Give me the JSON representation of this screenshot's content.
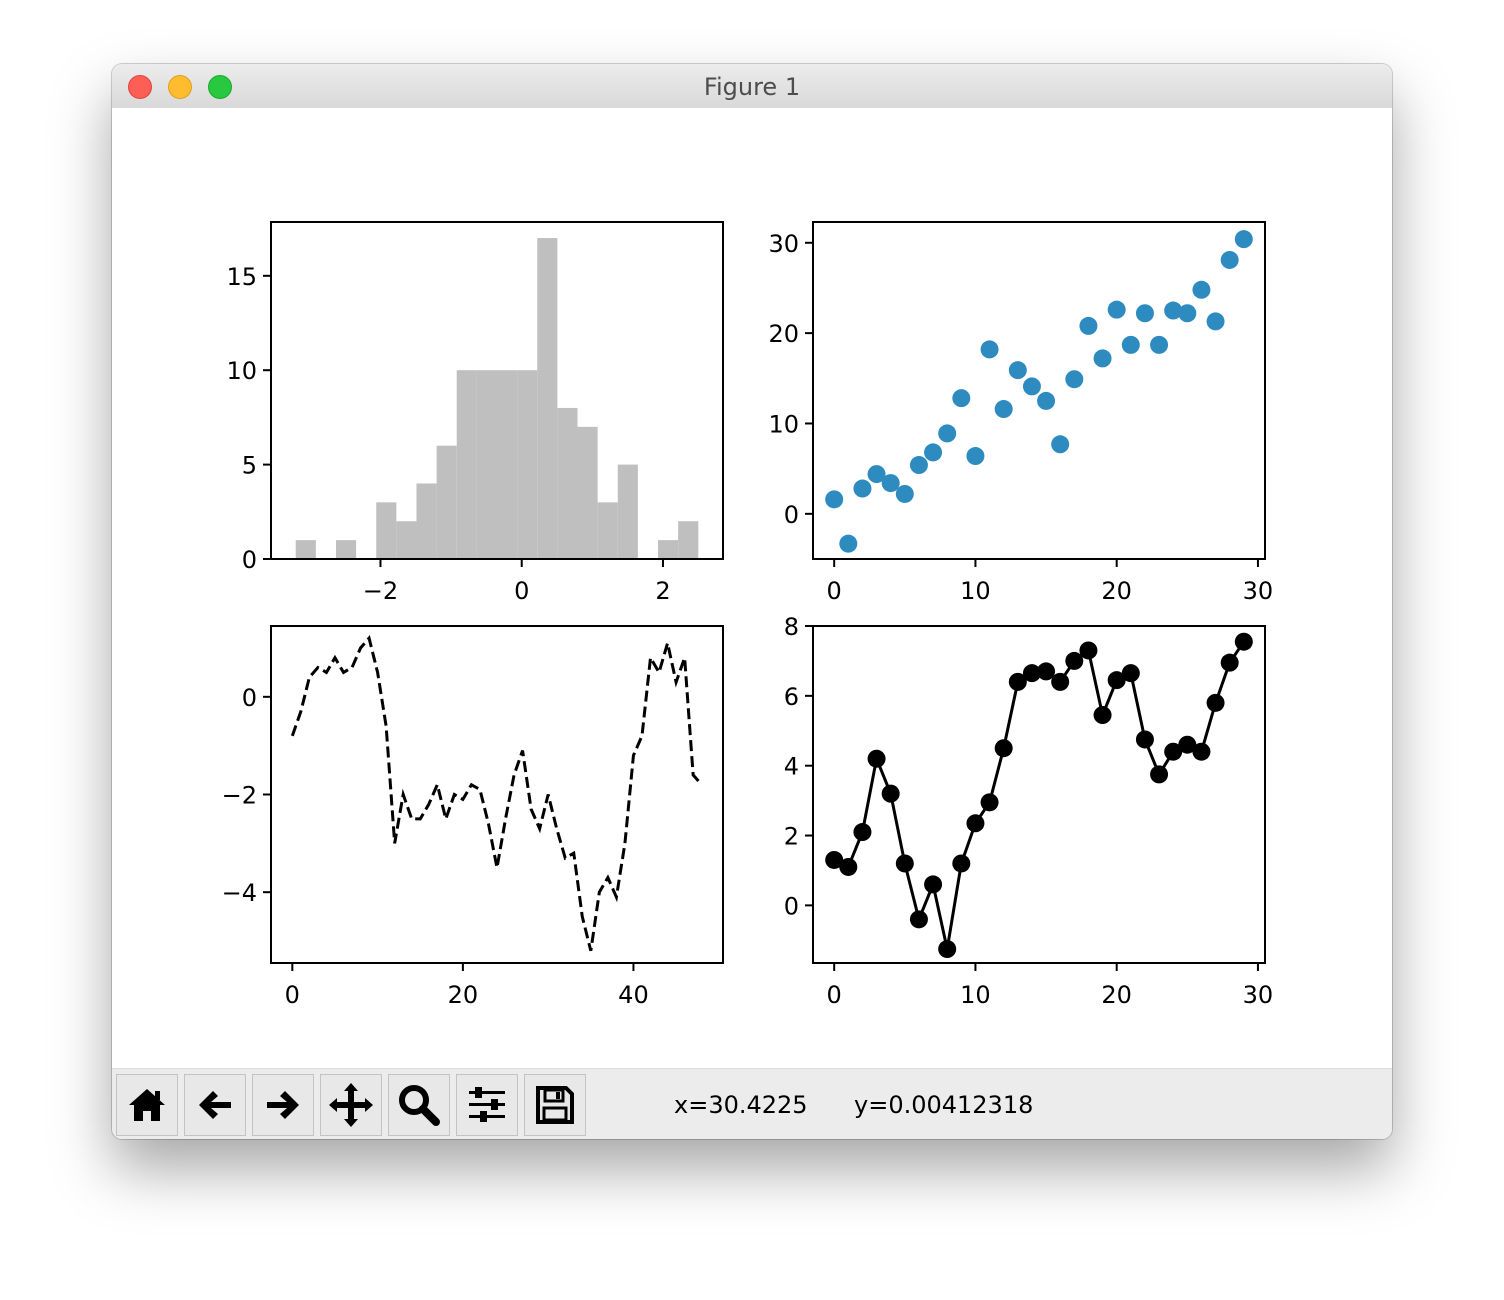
{
  "window": {
    "title": "Figure 1"
  },
  "toolbar": {
    "buttons": [
      {
        "name": "home-button",
        "icon": "home-icon"
      },
      {
        "name": "back-button",
        "icon": "arrow-left-icon"
      },
      {
        "name": "forward-button",
        "icon": "arrow-right-icon"
      },
      {
        "name": "pan-button",
        "icon": "move-icon"
      },
      {
        "name": "zoom-button",
        "icon": "magnifier-icon"
      },
      {
        "name": "configure-subplots-button",
        "icon": "sliders-icon"
      },
      {
        "name": "save-button",
        "icon": "floppy-disk-icon"
      }
    ],
    "x_readout": "x=30.4225",
    "y_readout": "y=0.00412318"
  },
  "chart_data": [
    {
      "type": "bar",
      "subtype": "histogram",
      "color": "#bfbfbf",
      "bin_start": -3.2,
      "bin_width": 0.285,
      "counts": [
        1,
        0,
        1,
        0,
        3,
        2,
        4,
        6,
        10,
        10,
        10,
        10,
        17,
        8,
        7,
        3,
        5,
        0,
        1,
        2
      ],
      "xlim": [
        -3.55,
        2.85
      ],
      "ylim": [
        0,
        17.85
      ],
      "xticks": [
        {
          "v": -2,
          "label": "−2"
        },
        {
          "v": 0,
          "label": "0"
        },
        {
          "v": 2,
          "label": "2"
        }
      ],
      "yticks": [
        {
          "v": 0,
          "label": "0"
        },
        {
          "v": 5,
          "label": "5"
        },
        {
          "v": 10,
          "label": "10"
        },
        {
          "v": 15,
          "label": "15"
        }
      ]
    },
    {
      "type": "scatter",
      "color": "#2e8bc0",
      "x": [
        0,
        1,
        2,
        3,
        4,
        5,
        6,
        7,
        8,
        9,
        10,
        11,
        12,
        13,
        14,
        15,
        16,
        17,
        18,
        19,
        20,
        21,
        22,
        23,
        24,
        25,
        26,
        27,
        28,
        29
      ],
      "y": [
        1.6,
        -3.3,
        2.8,
        4.4,
        3.4,
        2.2,
        5.4,
        6.8,
        8.9,
        12.8,
        6.4,
        18.2,
        11.6,
        15.9,
        14.1,
        12.5,
        7.7,
        14.9,
        20.8,
        17.2,
        22.6,
        18.7,
        22.2,
        18.7,
        22.5,
        22.2,
        24.8,
        21.3,
        28.1,
        30.4
      ],
      "xlim": [
        -1.5,
        30.5
      ],
      "ylim": [
        -5.0,
        32.3
      ],
      "xticks": [
        {
          "v": 0,
          "label": "0"
        },
        {
          "v": 10,
          "label": "10"
        },
        {
          "v": 20,
          "label": "20"
        },
        {
          "v": 30,
          "label": "30"
        }
      ],
      "yticks": [
        {
          "v": 0,
          "label": "0"
        },
        {
          "v": 10,
          "label": "10"
        },
        {
          "v": 20,
          "label": "20"
        },
        {
          "v": 30,
          "label": "30"
        }
      ]
    },
    {
      "type": "line",
      "style": "dashed",
      "color": "#000000",
      "x": [
        0,
        1,
        2,
        3,
        4,
        5,
        6,
        7,
        8,
        9,
        10,
        11,
        12,
        13,
        14,
        15,
        16,
        17,
        18,
        19,
        20,
        21,
        22,
        23,
        24,
        25,
        26,
        27,
        28,
        29,
        30,
        31,
        32,
        33,
        34,
        35,
        36,
        37,
        38,
        39,
        40,
        41,
        42,
        43,
        44,
        45,
        46,
        47,
        48
      ],
      "y": [
        -0.8,
        -0.3,
        0.4,
        0.6,
        0.5,
        0.8,
        0.5,
        0.6,
        1.0,
        1.2,
        0.5,
        -0.6,
        -3.0,
        -2.0,
        -2.5,
        -2.5,
        -2.2,
        -1.8,
        -2.5,
        -2.0,
        -2.1,
        -1.8,
        -1.9,
        -2.6,
        -3.5,
        -2.5,
        -1.6,
        -1.1,
        -2.3,
        -2.7,
        -2.0,
        -2.7,
        -3.3,
        -3.2,
        -4.5,
        -5.2,
        -4.0,
        -3.7,
        -4.1,
        -3.0,
        -1.2,
        -0.8,
        0.8,
        0.5,
        1.1,
        0.3,
        0.8,
        -1.6,
        -1.8
      ],
      "xlim": [
        -2.5,
        50.5
      ],
      "ylim": [
        -5.45,
        1.45
      ],
      "xticks": [
        {
          "v": 0,
          "label": "0"
        },
        {
          "v": 20,
          "label": "20"
        },
        {
          "v": 40,
          "label": "40"
        }
      ],
      "yticks": [
        {
          "v": -4,
          "label": "−4"
        },
        {
          "v": -2,
          "label": "−2"
        },
        {
          "v": 0,
          "label": "0"
        }
      ]
    },
    {
      "type": "line",
      "style": "solid-with-markers",
      "color": "#000000",
      "x": [
        0,
        1,
        2,
        3,
        4,
        5,
        6,
        7,
        8,
        9,
        10,
        11,
        12,
        13,
        14,
        15,
        16,
        17,
        18,
        19,
        20,
        21,
        22,
        23,
        24,
        25,
        26,
        27,
        28,
        29
      ],
      "y": [
        1.3,
        1.1,
        2.1,
        4.2,
        3.2,
        1.2,
        -0.4,
        0.6,
        -1.25,
        1.2,
        2.35,
        2.95,
        4.5,
        6.4,
        6.65,
        6.7,
        6.4,
        7.0,
        7.3,
        5.45,
        6.45,
        6.65,
        4.75,
        3.75,
        4.4,
        4.6,
        4.4,
        5.8,
        6.95,
        7.55
      ],
      "xlim": [
        -1.5,
        30.5
      ],
      "ylim": [
        -1.65,
        8.0
      ],
      "xticks": [
        {
          "v": 0,
          "label": "0"
        },
        {
          "v": 10,
          "label": "10"
        },
        {
          "v": 20,
          "label": "20"
        },
        {
          "v": 30,
          "label": "30"
        }
      ],
      "yticks": [
        {
          "v": 0,
          "label": "0"
        },
        {
          "v": 2,
          "label": "2"
        },
        {
          "v": 4,
          "label": "4"
        },
        {
          "v": 6,
          "label": "6"
        },
        {
          "v": 8,
          "label": "8"
        }
      ]
    }
  ]
}
